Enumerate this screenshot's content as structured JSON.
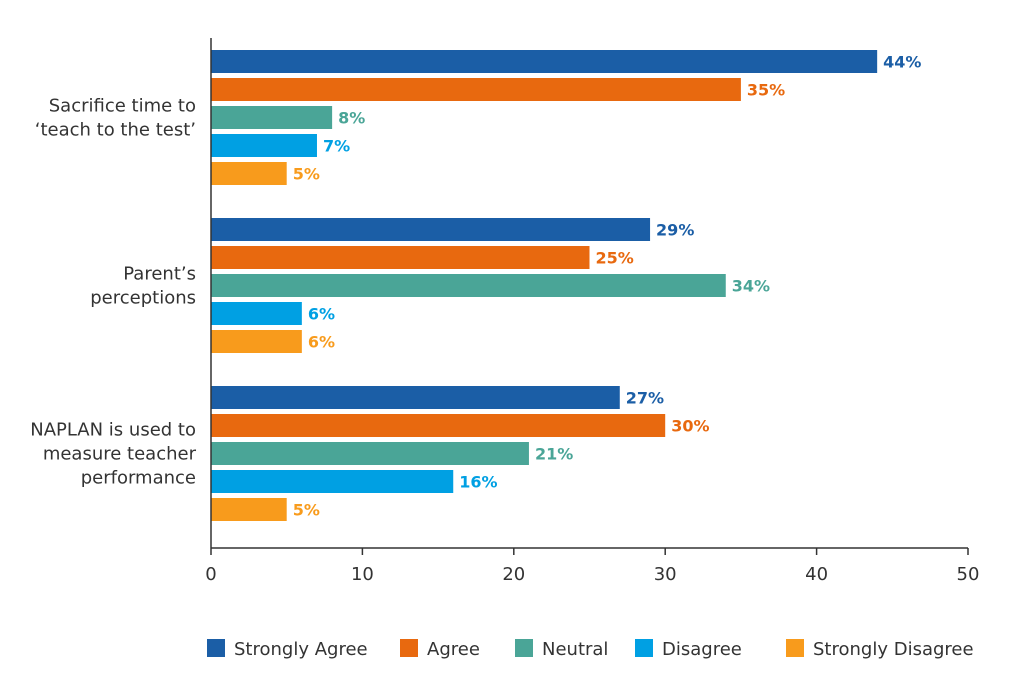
{
  "chart_data": {
    "type": "bar",
    "orientation": "horizontal",
    "categories": [
      [
        "Sacrifice time to",
        "‘teach to the test’"
      ],
      [
        "Parent’s",
        "perceptions"
      ],
      [
        "NAPLAN is used to",
        "measure teacher",
        "performance"
      ]
    ],
    "series": [
      {
        "name": "Strongly Agree",
        "color": "#1b5ea6",
        "values": [
          44,
          29,
          27
        ],
        "labels": [
          "44%",
          "29%",
          "27%"
        ]
      },
      {
        "name": "Agree",
        "color": "#e8690f",
        "values": [
          35,
          25,
          30
        ],
        "labels": [
          "35%",
          "25%",
          "30%"
        ]
      },
      {
        "name": "Neutral",
        "color": "#4aa597",
        "values": [
          8,
          34,
          21
        ],
        "labels": [
          "8%",
          "34%",
          "21%"
        ]
      },
      {
        "name": "Disagree",
        "color": "#00a0e3",
        "values": [
          7,
          6,
          16
        ],
        "labels": [
          "7%",
          "6%",
          "16%"
        ]
      },
      {
        "name": "Strongly Disagree",
        "color": "#f89b1c",
        "values": [
          5,
          6,
          5
        ],
        "labels": [
          "5%",
          "6%",
          "5%"
        ]
      }
    ],
    "xlim": [
      0,
      50
    ],
    "xticks": [
      "0",
      "10",
      "20",
      "30",
      "40",
      "50"
    ],
    "grid": false,
    "legend": "bottom"
  }
}
